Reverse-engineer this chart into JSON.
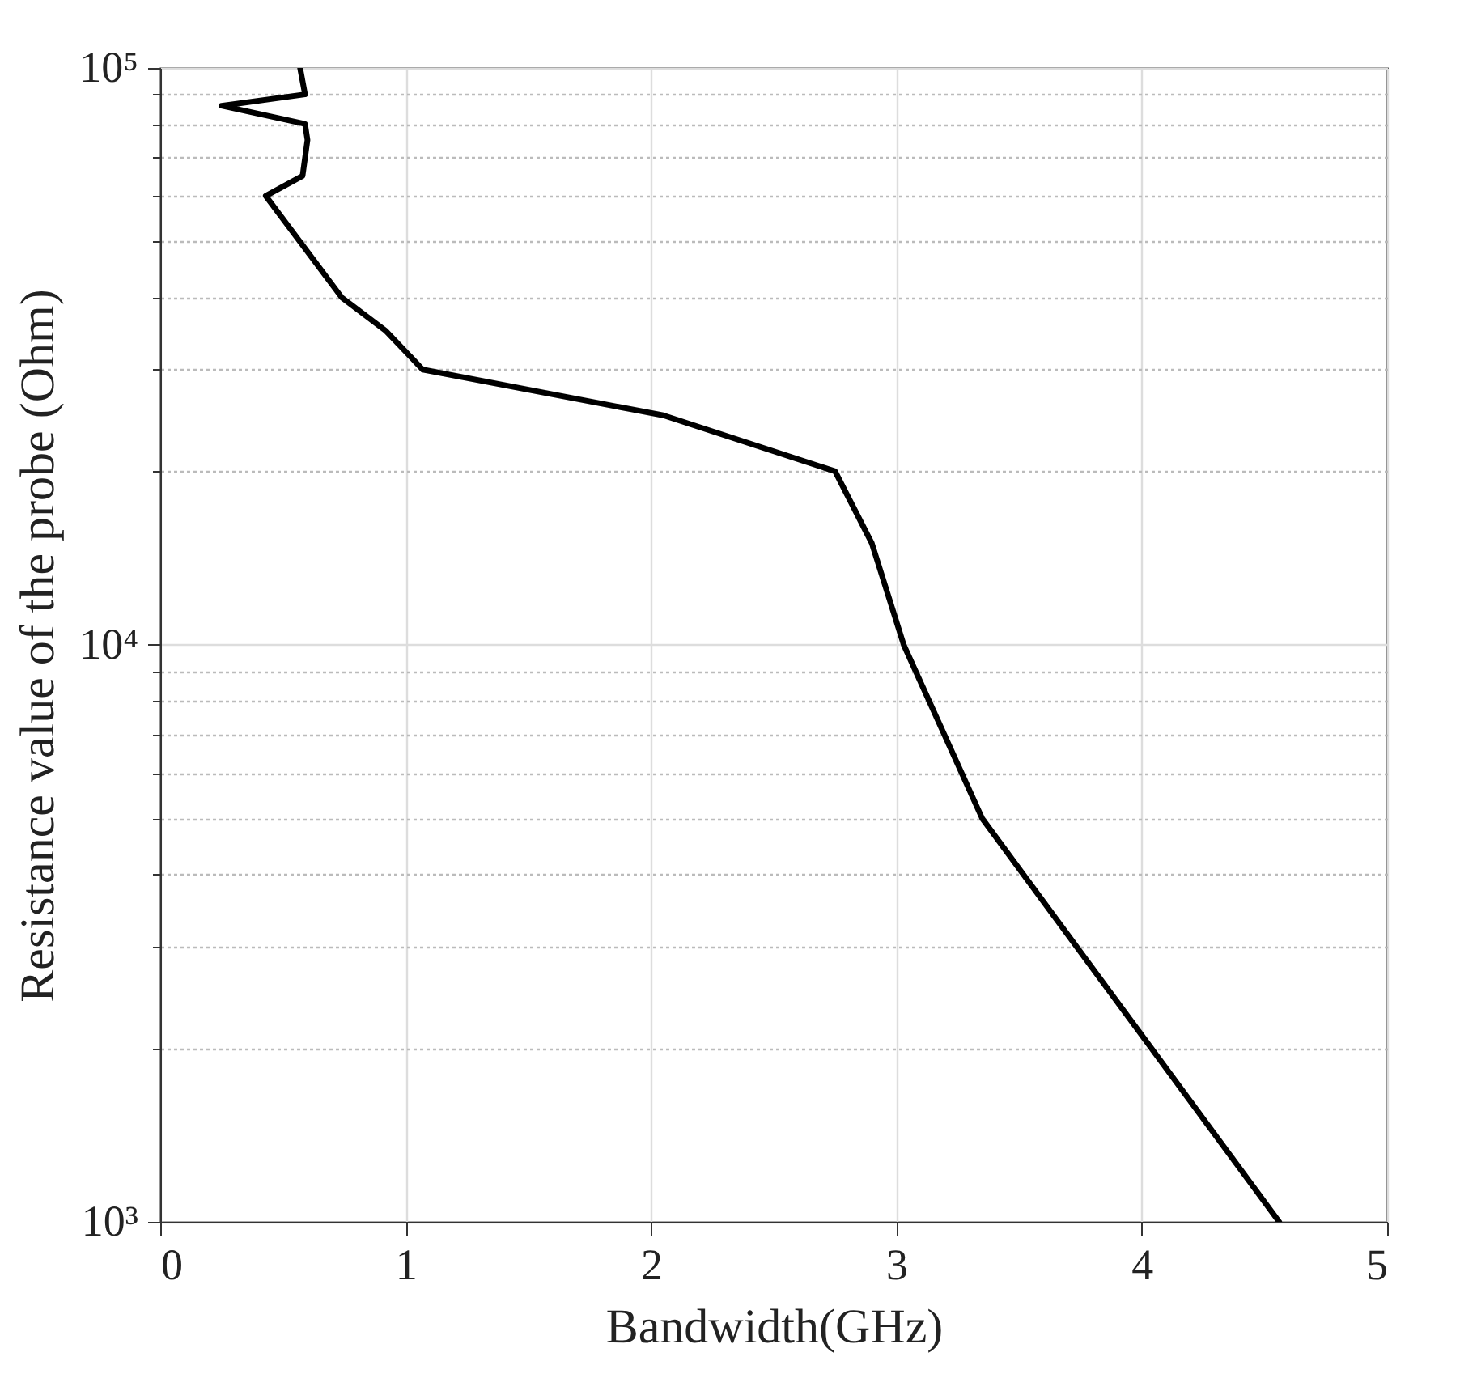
{
  "chart_data": {
    "type": "line",
    "xlabel": "Bandwidth(GHz)",
    "ylabel": "Resistance value of the probe (Ohm)",
    "log": "y",
    "grid": true,
    "line_style": "solid",
    "marker": "none",
    "xlim": [
      0,
      5
    ],
    "xticks": [
      0,
      1,
      2,
      3,
      4,
      5
    ],
    "ylim": [
      1000,
      100000
    ],
    "yticks": [
      {
        "value": 1000,
        "label": "10³"
      },
      {
        "value": 2000,
        "label": null
      },
      {
        "value": 3000,
        "label": null
      },
      {
        "value": 4000,
        "label": null
      },
      {
        "value": 5000,
        "label": null
      },
      {
        "value": 6000,
        "label": null
      },
      {
        "value": 7000,
        "label": null
      },
      {
        "value": 8000,
        "label": null
      },
      {
        "value": 9000,
        "label": null
      },
      {
        "value": 10000,
        "label": "10⁴"
      },
      {
        "value": 20000,
        "label": null
      },
      {
        "value": 30000,
        "label": null
      },
      {
        "value": 40000,
        "label": null
      },
      {
        "value": 50000,
        "label": null
      },
      {
        "value": 60000,
        "label": null
      },
      {
        "value": 70000,
        "label": null
      },
      {
        "value": 80000,
        "label": null
      },
      {
        "value": 90000,
        "label": null
      },
      {
        "value": 100000,
        "label": "10⁵"
      }
    ],
    "series": [
      {
        "color": "#000000",
        "x": [
          0.57,
          0.59,
          0.25,
          0.59,
          0.6,
          0.58,
          0.43,
          0.74,
          0.92,
          1.07,
          2.05,
          2.75,
          2.9,
          3.03,
          3.35,
          4.56
        ],
        "values": [
          100000,
          90000,
          86000,
          80000,
          75000,
          65000,
          60000,
          40000,
          35000,
          30000,
          25000,
          20000,
          15000,
          10000,
          5000,
          1000
        ]
      }
    ]
  }
}
